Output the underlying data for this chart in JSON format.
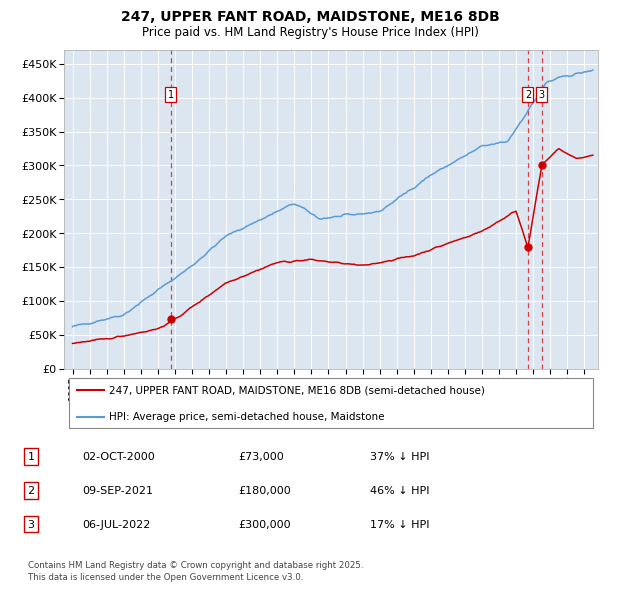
{
  "title": "247, UPPER FANT ROAD, MAIDSTONE, ME16 8DB",
  "subtitle": "Price paid vs. HM Land Registry's House Price Index (HPI)",
  "red_label": "247, UPPER FANT ROAD, MAIDSTONE, ME16 8DB (semi-detached house)",
  "blue_label": "HPI: Average price, semi-detached house, Maidstone",
  "footnote": "Contains HM Land Registry data © Crown copyright and database right 2025.\nThis data is licensed under the Open Government Licence v3.0.",
  "transactions": [
    {
      "num": 1,
      "date": "02-OCT-2000",
      "price": "£73,000",
      "note": "37% ↓ HPI",
      "year": 2000.75,
      "price_val": 73000
    },
    {
      "num": 2,
      "date": "09-SEP-2021",
      "price": "£180,000",
      "note": "46% ↓ HPI",
      "year": 2021.69,
      "price_val": 180000
    },
    {
      "num": 3,
      "date": "06-JUL-2022",
      "price": "£300,000",
      "note": "17% ↓ HPI",
      "year": 2022.51,
      "price_val": 300000
    }
  ],
  "background_color": "#dce6f1",
  "red_color": "#cc0000",
  "blue_color": "#5b9bd5",
  "ylim": [
    0,
    470000
  ],
  "yticks": [
    0,
    50000,
    100000,
    150000,
    200000,
    250000,
    300000,
    350000,
    400000,
    450000
  ],
  "xlim": [
    1994.5,
    2025.8
  ],
  "xticks": [
    1995,
    1996,
    1997,
    1998,
    1999,
    2000,
    2001,
    2002,
    2003,
    2004,
    2005,
    2006,
    2007,
    2008,
    2009,
    2010,
    2011,
    2012,
    2013,
    2014,
    2015,
    2016,
    2017,
    2018,
    2019,
    2020,
    2021,
    2022,
    2023,
    2024,
    2025
  ]
}
